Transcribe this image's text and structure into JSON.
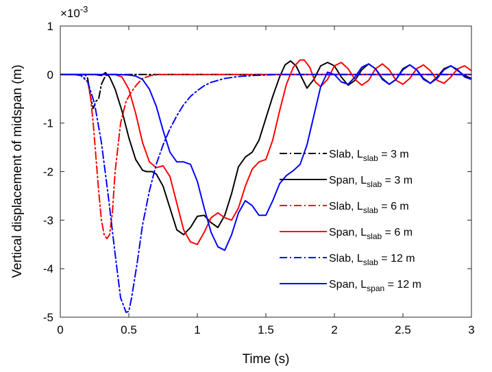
{
  "chart_data": {
    "type": "line",
    "xlabel": "Time (s)",
    "ylabel": "Vertical displacement of midspan (m)",
    "y_multiplier_label": "×10",
    "y_multiplier_exp": "-3",
    "xlim": [
      0,
      3
    ],
    "ylim": [
      -5,
      1
    ],
    "xticks": [
      0,
      0.5,
      1,
      1.5,
      2,
      2.5,
      3
    ],
    "xtick_labels": [
      "0",
      "0.5",
      "1",
      "1.5",
      "2",
      "2.5",
      "3"
    ],
    "yticks": [
      1,
      0,
      -1,
      -2,
      -3,
      -4,
      -5
    ],
    "ytick_labels": [
      "1",
      "0",
      "-1",
      "-2",
      "-3",
      "-4",
      "-5"
    ],
    "grid": false,
    "legend_position": "right",
    "series": [
      {
        "label_main": "Slab, L",
        "label_sub": "slab",
        "label_tail": " = 3 m",
        "color": "#000000",
        "dash": "dashdot",
        "x": [
          0,
          0.18,
          0.2,
          0.22,
          0.24,
          0.26,
          0.28,
          0.3,
          0.33,
          0.36,
          0.45,
          3.0
        ],
        "y": [
          0,
          0,
          -0.08,
          -0.45,
          -0.7,
          -0.55,
          -0.5,
          -0.2,
          -0.02,
          0,
          0,
          0
        ]
      },
      {
        "label_main": "Span, L",
        "label_sub": "slab",
        "label_tail": " = 3 m",
        "color": "#000000",
        "dash": "solid",
        "x": [
          0,
          0.25,
          0.3,
          0.33,
          0.36,
          0.4,
          0.45,
          0.5,
          0.55,
          0.6,
          0.63,
          0.67,
          0.7,
          0.75,
          0.8,
          0.85,
          0.9,
          0.95,
          1.0,
          1.05,
          1.1,
          1.15,
          1.2,
          1.25,
          1.3,
          1.35,
          1.4,
          1.45,
          1.5,
          1.55,
          1.6,
          1.64,
          1.68,
          1.72,
          1.76,
          1.8,
          1.85,
          1.9,
          1.95,
          2.0,
          2.05,
          2.1,
          2.15,
          2.2,
          2.25,
          2.3,
          2.35,
          2.4,
          2.45,
          2.5,
          2.55,
          2.6,
          2.65,
          2.7,
          2.75,
          2.8,
          2.85,
          2.9,
          2.95,
          3.0
        ],
        "y": [
          0,
          0,
          -0.02,
          0.04,
          -0.05,
          -0.3,
          -0.75,
          -1.3,
          -1.75,
          -1.97,
          -2.0,
          -2.0,
          -2.05,
          -2.3,
          -2.75,
          -3.2,
          -3.3,
          -3.15,
          -2.92,
          -2.9,
          -3.05,
          -3.15,
          -2.9,
          -2.45,
          -1.9,
          -1.7,
          -1.6,
          -1.35,
          -0.9,
          -0.45,
          -0.05,
          0.2,
          0.28,
          0.18,
          -0.05,
          -0.28,
          -0.1,
          0.18,
          0.25,
          0.18,
          -0.05,
          -0.22,
          -0.12,
          0.1,
          0.22,
          0.12,
          -0.08,
          -0.2,
          -0.1,
          0.12,
          0.2,
          0.1,
          -0.08,
          -0.18,
          -0.05,
          0.12,
          0.18,
          0.08,
          -0.02,
          -0.08
        ]
      },
      {
        "label_main": "Slab, L",
        "label_sub": "slab",
        "label_tail": " = 6 m",
        "color": "#ff0000",
        "dash": "dashdot",
        "x": [
          0,
          0.12,
          0.16,
          0.2,
          0.22,
          0.24,
          0.26,
          0.28,
          0.3,
          0.32,
          0.34,
          0.36,
          0.38,
          0.4,
          0.44,
          0.48,
          0.52,
          0.56,
          0.6,
          0.66,
          0.72,
          0.8,
          3.0
        ],
        "y": [
          0,
          0,
          -0.02,
          -0.15,
          -0.45,
          -1.0,
          -1.7,
          -2.4,
          -3.0,
          -3.3,
          -3.38,
          -3.3,
          -2.85,
          -2.0,
          -1.0,
          -0.55,
          -0.35,
          -0.2,
          -0.08,
          -0.02,
          0,
          0,
          0
        ]
      },
      {
        "label_main": "Span, L",
        "label_sub": "slab",
        "label_tail": " = 6 m",
        "color": "#ff0000",
        "dash": "solid",
        "x": [
          0,
          0.4,
          0.45,
          0.5,
          0.55,
          0.6,
          0.65,
          0.7,
          0.75,
          0.8,
          0.85,
          0.9,
          0.95,
          1.0,
          1.05,
          1.1,
          1.15,
          1.2,
          1.25,
          1.3,
          1.35,
          1.4,
          1.45,
          1.5,
          1.55,
          1.6,
          1.65,
          1.7,
          1.75,
          1.78,
          1.82,
          1.86,
          1.9,
          1.95,
          2.0,
          2.05,
          2.1,
          2.15,
          2.2,
          2.25,
          2.3,
          2.35,
          2.4,
          2.45,
          2.5,
          2.55,
          2.6,
          2.65,
          2.7,
          2.75,
          2.8,
          2.85,
          2.9,
          2.95,
          3.0
        ],
        "y": [
          0,
          0,
          -0.05,
          -0.3,
          -0.8,
          -1.4,
          -1.8,
          -1.92,
          -1.88,
          -2.1,
          -2.65,
          -3.2,
          -3.45,
          -3.5,
          -3.25,
          -2.95,
          -2.85,
          -2.95,
          -3.0,
          -2.75,
          -2.3,
          -1.95,
          -1.8,
          -1.75,
          -1.35,
          -0.75,
          -0.2,
          0.15,
          0.3,
          0.3,
          0.15,
          -0.15,
          -0.25,
          -0.1,
          0.18,
          0.25,
          0.12,
          -0.1,
          -0.22,
          -0.12,
          0.12,
          0.22,
          0.1,
          -0.12,
          -0.2,
          -0.08,
          0.12,
          0.2,
          0.08,
          -0.12,
          -0.18,
          -0.05,
          0.12,
          0.18,
          0.08
        ]
      },
      {
        "label_main": "Slab, L",
        "label_sub": "slab",
        "label_tail": " = 12 m",
        "color": "#0000ff",
        "dash": "dashdot",
        "x": [
          0,
          0.1,
          0.15,
          0.2,
          0.25,
          0.3,
          0.35,
          0.4,
          0.44,
          0.48,
          0.5,
          0.52,
          0.56,
          0.6,
          0.65,
          0.7,
          0.75,
          0.8,
          0.85,
          0.9,
          0.95,
          1.0,
          1.05,
          1.1,
          1.2,
          1.3,
          1.4,
          1.5,
          1.6,
          1.8,
          3.0
        ],
        "y": [
          0,
          0,
          -0.02,
          -0.15,
          -0.6,
          -1.4,
          -2.5,
          -3.7,
          -4.6,
          -4.9,
          -4.88,
          -4.6,
          -3.9,
          -3.1,
          -2.4,
          -1.85,
          -1.45,
          -1.12,
          -0.85,
          -0.62,
          -0.45,
          -0.33,
          -0.23,
          -0.16,
          -0.08,
          -0.04,
          -0.02,
          -0.01,
          0,
          0,
          0
        ]
      },
      {
        "label_main": "Span, L",
        "label_sub": "span",
        "label_tail": " = 12 m",
        "color": "#0000ff",
        "dash": "solid",
        "x": [
          0,
          0.4,
          0.5,
          0.55,
          0.6,
          0.65,
          0.7,
          0.75,
          0.8,
          0.85,
          0.9,
          0.95,
          1.0,
          1.05,
          1.1,
          1.15,
          1.2,
          1.25,
          1.3,
          1.35,
          1.4,
          1.45,
          1.5,
          1.55,
          1.6,
          1.65,
          1.7,
          1.75,
          1.8,
          1.85,
          1.9,
          1.95,
          2.0,
          2.05,
          2.1,
          2.15,
          2.2,
          2.25,
          2.3,
          2.35,
          2.4,
          2.45,
          2.5,
          2.55,
          2.6,
          2.65,
          2.7,
          2.75,
          2.8,
          2.85,
          2.9,
          2.95,
          3.0
        ],
        "y": [
          0,
          0,
          -0.01,
          -0.03,
          -0.1,
          -0.3,
          -0.65,
          -1.15,
          -1.6,
          -1.8,
          -1.8,
          -1.85,
          -2.2,
          -2.75,
          -3.25,
          -3.55,
          -3.62,
          -3.3,
          -2.85,
          -2.6,
          -2.7,
          -2.9,
          -2.9,
          -2.6,
          -2.25,
          -2.08,
          -1.98,
          -1.85,
          -1.45,
          -0.85,
          -0.25,
          0.05,
          0.0,
          -0.15,
          -0.2,
          -0.05,
          0.15,
          0.22,
          0.12,
          -0.1,
          -0.2,
          -0.1,
          0.1,
          0.2,
          0.1,
          -0.1,
          -0.18,
          -0.08,
          0.1,
          0.18,
          0.1,
          -0.05,
          -0.1
        ]
      }
    ]
  }
}
